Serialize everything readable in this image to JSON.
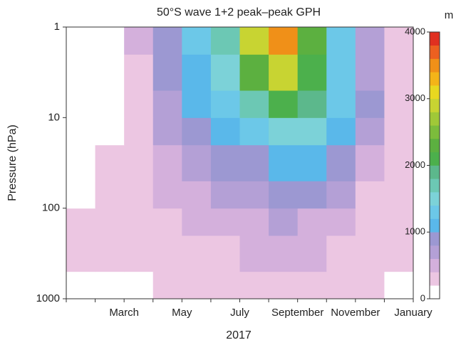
{
  "chart_data": {
    "type": "contour",
    "title": "50°S wave 1+2 peak–peak GPH",
    "xlabel": "2017",
    "ylabel": "Pressure (hPa)",
    "colorbar_label": "m",
    "categories": [
      null,
      null,
      "March",
      null,
      "May",
      null,
      "July",
      null,
      "September",
      null,
      "November",
      null,
      "January"
    ],
    "y_edges": [
      1000,
      500,
      200,
      100,
      50,
      20,
      10,
      5,
      2,
      1
    ],
    "values": [
      [
        100,
        150,
        150,
        200,
        200,
        200,
        250,
        300,
        300,
        250,
        200,
        150
      ],
      [
        200,
        250,
        200,
        250,
        300,
        300,
        400,
        450,
        400,
        350,
        250,
        200
      ],
      [
        200,
        300,
        200,
        300,
        400,
        400,
        500,
        600,
        550,
        450,
        300,
        200
      ],
      [
        150,
        250,
        200,
        400,
        500,
        600,
        700,
        800,
        800,
        600,
        350,
        200
      ],
      [
        100,
        200,
        250,
        500,
        650,
        800,
        900,
        1100,
        1100,
        800,
        500,
        250
      ],
      [
        100,
        100,
        250,
        600,
        800,
        1000,
        1200,
        1500,
        1400,
        1100,
        700,
        300
      ],
      [
        100,
        100,
        300,
        700,
        1000,
        1300,
        1700,
        2100,
        1800,
        1300,
        800,
        300
      ],
      [
        100,
        50,
        350,
        800,
        1100,
        1500,
        2300,
        2800,
        2100,
        1300,
        700,
        250
      ],
      [
        150,
        50,
        400,
        900,
        1200,
        1700,
        2800,
        3400,
        2300,
        1200,
        600,
        250
      ]
    ],
    "ylim": [
      1000,
      1
    ],
    "yticks": [
      1,
      10,
      100,
      1000
    ],
    "log_y": true,
    "zlim": [
      0,
      4000
    ],
    "zticks": [
      0,
      1000,
      2000,
      3000,
      4000
    ],
    "colors": [
      "#ffffff",
      "#ecc6e2",
      "#d4b0dc",
      "#b4a0d6",
      "#9c98d2",
      "#5ab8ea",
      "#6cc8e8",
      "#7cd2d8",
      "#6cc8b4",
      "#5cb88c",
      "#4cb04c",
      "#5cb040",
      "#7cbc3c",
      "#a0c838",
      "#c8d432",
      "#e8d820",
      "#f4b418",
      "#f09018",
      "#ec6020",
      "#e03020"
    ]
  }
}
